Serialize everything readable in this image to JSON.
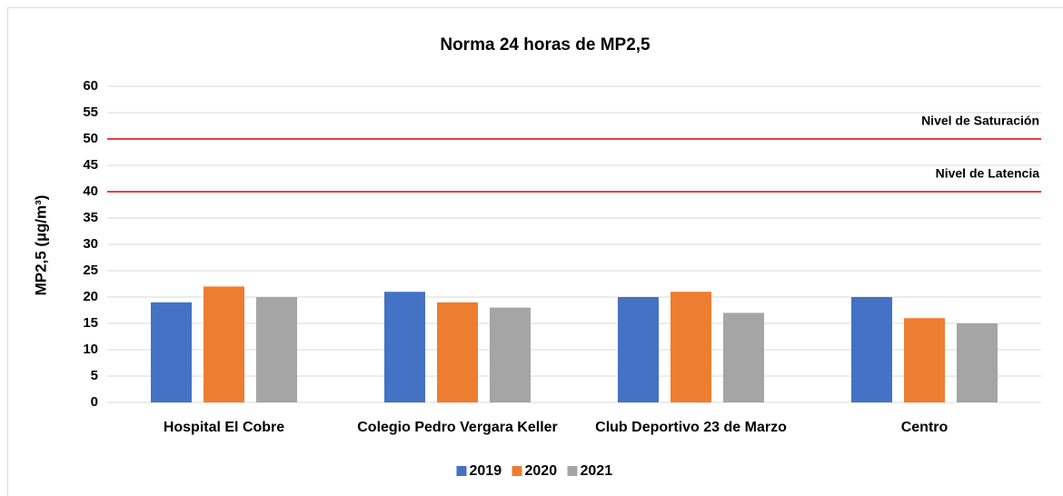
{
  "chart_data": {
    "type": "bar",
    "title": "Norma 24 horas de MP2,5",
    "y_label": "MP2,5 (µg/m³)",
    "categories": [
      "Hospital El Cobre",
      "Colegio Pedro Vergara Keller",
      "Club Deportivo 23 de Marzo",
      "Centro"
    ],
    "series": [
      {
        "name": "2019",
        "color": "#4472c4",
        "values": [
          19,
          21,
          20,
          20
        ]
      },
      {
        "name": "2020",
        "color": "#ed7d31",
        "values": [
          22,
          19,
          21,
          16
        ]
      },
      {
        "name": "2021",
        "color": "#a5a5a5",
        "values": [
          20,
          18,
          17,
          15
        ]
      }
    ],
    "ylim": [
      0,
      60
    ],
    "yticks": [
      0,
      5,
      10,
      15,
      20,
      25,
      30,
      35,
      40,
      45,
      50,
      55,
      60
    ],
    "grid": true,
    "reference_lines": [
      {
        "value": 50,
        "label": "Nivel de Saturación",
        "color": "#e00000"
      },
      {
        "value": 40,
        "label": "Nivel de Latencia",
        "color": "#e00000"
      }
    ],
    "legend": "bottom"
  }
}
